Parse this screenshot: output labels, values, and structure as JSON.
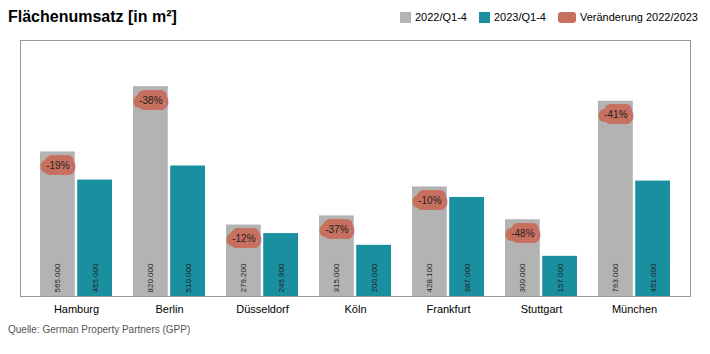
{
  "chart_data": {
    "type": "bar",
    "title": "Flächenumsatz [in m²]",
    "caption": "Quelle: German Property Partners (GPP)",
    "categories": [
      "Hamburg",
      "Berlin",
      "Düsseldorf",
      "Köln",
      "Frankfurt",
      "Stuttgart",
      "München"
    ],
    "series": [
      {
        "name": "2022/Q1-4",
        "color": "#b3b3b3",
        "values": [
          565000,
          820000,
          279200,
          315000,
          428100,
          300000,
          763000
        ],
        "value_labels": [
          "565.000",
          "820.000",
          "279.200",
          "315.000",
          "428.100",
          "300.000",
          "763.000"
        ]
      },
      {
        "name": "2023/Q1-4",
        "color": "#1a8fa0",
        "values": [
          455000,
          510000,
          245900,
          200000,
          387000,
          157000,
          451000
        ],
        "value_labels": [
          "455.000",
          "510.000",
          "245.900",
          "200.000",
          "387.000",
          "157.000",
          "451.000"
        ]
      }
    ],
    "changes": {
      "name": "Veränderung 2022/2023",
      "color": "#c87060",
      "values": [
        -19,
        -38,
        -12,
        -37,
        -10,
        -48,
        -41
      ],
      "value_labels": [
        "-19%",
        "-38%",
        "-12%",
        "-37%",
        "-10%",
        "-48%",
        "-41%"
      ]
    },
    "ylim": [
      0,
      1000400
    ],
    "tick_labels": "x",
    "grid": false,
    "legend": "upper right",
    "data_labels": true
  }
}
